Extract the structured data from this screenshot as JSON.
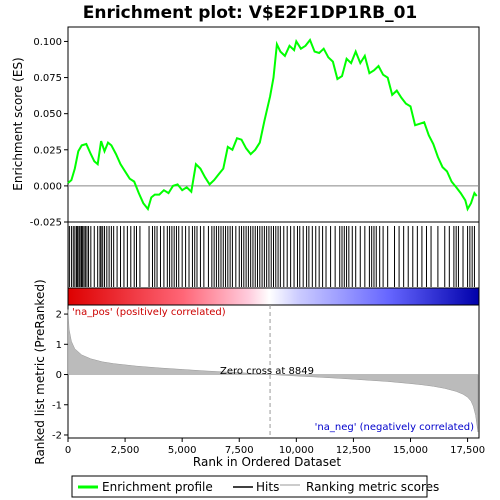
{
  "chart_data": {
    "type": "line",
    "title": "Enrichment plot: V$E2F1DP1RB_01",
    "xlabel": "Rank in Ordered Dataset",
    "ylabel_top": "Enrichment score (ES)",
    "ylabel_bottom": "Ranked list metric (PreRanked)",
    "xlim": [
      0,
      18000
    ],
    "x_ticks": [
      0,
      2500,
      5000,
      7500,
      10000,
      12500,
      15000,
      17500
    ],
    "x_tick_labels": [
      "0",
      "2,500",
      "5,000",
      "7,500",
      "10,000",
      "12,500",
      "15,000",
      "17,500"
    ],
    "es_ylim": [
      -0.025,
      0.11
    ],
    "es_ticks": [
      -0.025,
      0.0,
      0.025,
      0.05,
      0.075,
      0.1
    ],
    "es_tick_labels": [
      "-0.025",
      "0.000",
      "0.025",
      "0.050",
      "0.075",
      "0.100"
    ],
    "metric_ylim": [
      -2.1,
      2.3
    ],
    "metric_ticks": [
      -2,
      -1,
      0,
      1,
      2
    ],
    "metric_tick_labels": [
      "-2",
      "-1",
      "0",
      "1",
      "2"
    ],
    "series": [
      {
        "name": "Enrichment profile",
        "color": "#00ff00",
        "x": [
          0,
          150,
          300,
          450,
          600,
          800,
          1000,
          1150,
          1300,
          1450,
          1600,
          1750,
          1900,
          2100,
          2300,
          2500,
          2700,
          2900,
          3100,
          3300,
          3500,
          3650,
          3800,
          4000,
          4200,
          4400,
          4600,
          4800,
          5000,
          5200,
          5400,
          5600,
          5800,
          6000,
          6200,
          6400,
          6600,
          6800,
          7000,
          7200,
          7400,
          7600,
          7800,
          8000,
          8200,
          8400,
          8600,
          8849,
          9000,
          9150,
          9300,
          9500,
          9700,
          9900,
          10000,
          10200,
          10400,
          10600,
          10800,
          11000,
          11200,
          11400,
          11600,
          11800,
          12000,
          12200,
          12400,
          12600,
          12800,
          13000,
          13200,
          13400,
          13600,
          13800,
          14000,
          14200,
          14400,
          14600,
          14800,
          15000,
          15200,
          15400,
          15600,
          15800,
          16000,
          16200,
          16400,
          16600,
          16800,
          17000,
          17200,
          17400,
          17500,
          17650,
          17800,
          17900
        ],
        "values": [
          0.002,
          0.004,
          0.012,
          0.024,
          0.028,
          0.029,
          0.022,
          0.017,
          0.015,
          0.031,
          0.024,
          0.03,
          0.028,
          0.022,
          0.015,
          0.01,
          0.005,
          0.003,
          -0.005,
          -0.012,
          -0.016,
          -0.008,
          -0.006,
          -0.006,
          -0.003,
          -0.005,
          0.0,
          0.001,
          -0.003,
          -0.001,
          -0.004,
          0.015,
          0.012,
          0.006,
          0.001,
          0.004,
          0.008,
          0.012,
          0.027,
          0.025,
          0.033,
          0.032,
          0.026,
          0.022,
          0.025,
          0.03,
          0.045,
          0.062,
          0.075,
          0.098,
          0.093,
          0.09,
          0.097,
          0.094,
          0.1,
          0.095,
          0.097,
          0.101,
          0.093,
          0.092,
          0.095,
          0.089,
          0.086,
          0.074,
          0.076,
          0.088,
          0.085,
          0.093,
          0.085,
          0.09,
          0.078,
          0.08,
          0.083,
          0.077,
          0.075,
          0.063,
          0.066,
          0.061,
          0.057,
          0.055,
          0.042,
          0.043,
          0.044,
          0.035,
          0.029,
          0.02,
          0.013,
          0.01,
          0.003,
          -0.001,
          -0.005,
          -0.01,
          -0.016,
          -0.012,
          -0.005,
          -0.007
        ]
      }
    ],
    "hits": [
      60,
      150,
      230,
      300,
      370,
      420,
      480,
      530,
      590,
      640,
      700,
      760,
      830,
      900,
      1000,
      1150,
      1300,
      1400,
      1450,
      1520,
      1600,
      1700,
      1800,
      1900,
      2000,
      2150,
      2300,
      2450,
      2600,
      2750,
      2900,
      3000,
      3150,
      3550,
      3700,
      3800,
      3900,
      4050,
      4200,
      4350,
      4450,
      4550,
      4650,
      4750,
      4850,
      5000,
      5150,
      5300,
      5450,
      5550,
      5650,
      5800,
      5950,
      6150,
      6300,
      6400,
      6500,
      6600,
      6700,
      6800,
      6900,
      7000,
      7100,
      7200,
      7350,
      7500,
      7600,
      7700,
      7800,
      7900,
      8000,
      8100,
      8200,
      8300,
      8400,
      8500,
      8600,
      8700,
      8800,
      8900,
      9000,
      9100,
      9200,
      9300,
      9450,
      9600,
      9750,
      9900,
      10050,
      10150,
      10300,
      10450,
      10550,
      10700,
      10850,
      11000,
      11150,
      11300,
      11500,
      11700,
      11900,
      12000,
      12100,
      12200,
      12300,
      12450,
      12600,
      12800,
      13000,
      13200,
      13300,
      13400,
      13500,
      13650,
      13800,
      14000,
      14300,
      14500,
      14700,
      14900,
      15100,
      15300,
      15500,
      15700,
      15900,
      16200,
      16500,
      16700,
      16900,
      17000,
      17100,
      17300,
      17500,
      17600,
      17700,
      17800
    ],
    "metric_curve": {
      "x": [
        0,
        50,
        150,
        300,
        600,
        1000,
        1500,
        2000,
        3000,
        4000,
        5000,
        6000,
        7000,
        8000,
        8849,
        10000,
        11000,
        12000,
        13000,
        14000,
        15000,
        15500,
        16000,
        16500,
        17000,
        17300,
        17500,
        17650,
        17750,
        17850,
        17950
      ],
      "values": [
        2.15,
        1.5,
        1.1,
        0.85,
        0.65,
        0.52,
        0.42,
        0.36,
        0.28,
        0.22,
        0.17,
        0.12,
        0.08,
        0.04,
        0.0,
        -0.05,
        -0.09,
        -0.13,
        -0.18,
        -0.23,
        -0.3,
        -0.34,
        -0.39,
        -0.46,
        -0.56,
        -0.65,
        -0.75,
        -0.88,
        -1.05,
        -1.35,
        -1.9
      ]
    },
    "zero_cross_label": "Zero cross at 8849",
    "zero_cross_x": 8849,
    "pos_label": "'na_pos' (positively correlated)",
    "neg_label": "'na_neg' (negatively correlated)",
    "pos_color": "#cc0000",
    "neg_color": "#0000cc",
    "legend": [
      {
        "label": "Enrichment profile",
        "color": "#00ff00"
      },
      {
        "label": "Hits",
        "color": "#000000"
      },
      {
        "label": "Ranking metric scores",
        "color": "#bbbbbb"
      }
    ],
    "legend_position": "bottom"
  }
}
